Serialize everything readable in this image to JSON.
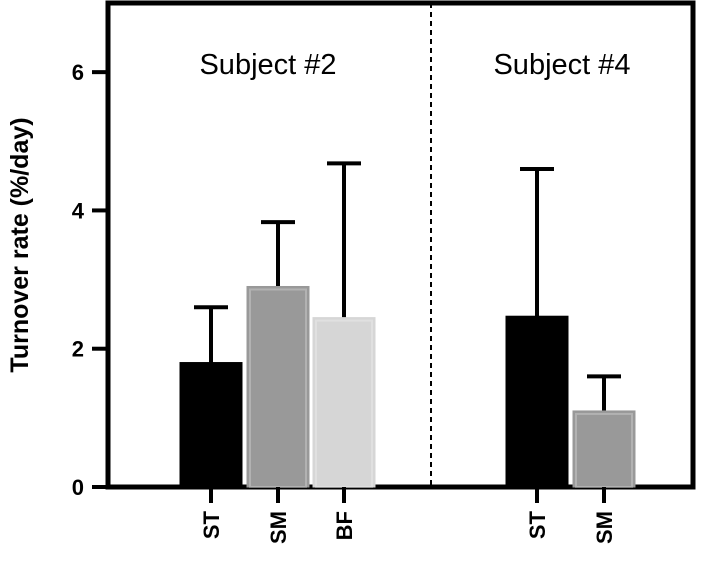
{
  "chart_data": {
    "type": "bar",
    "xlabel": "",
    "ylabel": "Turnover rate (%/day)",
    "ylim": [
      0,
      7
    ],
    "yticks": [
      0,
      2,
      4,
      6
    ],
    "grid": false,
    "error_bars": "upper",
    "panels": [
      {
        "title": "Subject #2",
        "categories": [
          "ST",
          "SM",
          "BF"
        ],
        "values": [
          1.8,
          2.9,
          2.45
        ],
        "error_upper": [
          2.6,
          3.83,
          4.68
        ],
        "colors": [
          "#000000",
          "#999999",
          "#d6d6d6"
        ]
      },
      {
        "title": "Subject #4",
        "categories": [
          "ST",
          "SM"
        ],
        "values": [
          2.47,
          1.1
        ],
        "error_upper": [
          4.6,
          1.6
        ],
        "colors": [
          "#000000",
          "#999999"
        ]
      }
    ]
  }
}
